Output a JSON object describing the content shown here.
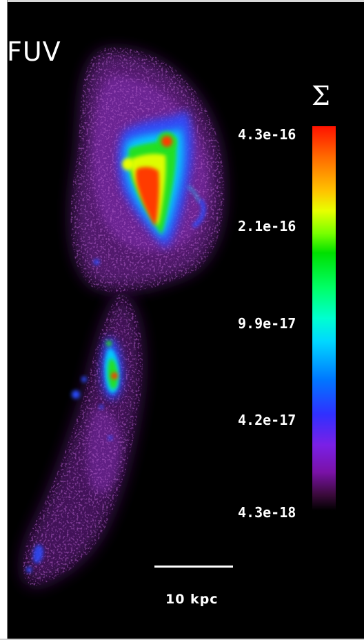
{
  "image": {
    "band_label": "FUV",
    "quantity_symbol": "Σ",
    "colorbar": {
      "ticks": [
        "4.3e-16",
        "2.1e-16",
        "9.9e-17",
        "4.2e-17",
        "4.3e-18"
      ],
      "colormap": "rainbow",
      "colors": {
        "top": "#ff1200",
        "yellow": "#e8ff00",
        "green": "#00e000",
        "cyan": "#00d8ff",
        "blue": "#3030ff",
        "violet": "#7a20e6",
        "bottom": "#000000"
      }
    },
    "scale_bar": {
      "label": "10 kpc"
    }
  }
}
